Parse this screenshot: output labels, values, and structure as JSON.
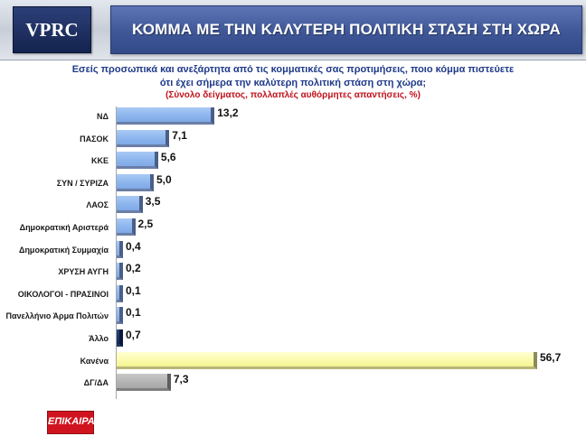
{
  "header": {
    "logo_text": "VPRC",
    "title": "ΚΟΜΜΑ ΜΕ ΤΗΝ ΚΑΛΥΤΕΡΗ ΠΟΛΙΤΙΚΗ ΣΤΑΣΗ ΣΤΗ ΧΩΡΑ"
  },
  "question": {
    "line1": "Εσείς προσωπικά και ανεξάρτητα από τις κομματικές σας προτιμήσεις, ποιο κόμμα πιστεύετε",
    "line2": "ότι έχει σήμερα την καλύτερη πολιτική στάση στη χώρα;",
    "note": "(Σύνολο δείγματος, πολλαπλές αυθόρμητες απαντήσεις, %)"
  },
  "footer": {
    "logo_text": "ΕΠΙΚΑΙΡΑ"
  },
  "colors": {
    "blue_bar": "#8eb6ee",
    "dark_bar": "#142a5c",
    "yellow_bar": "#fbfbae",
    "grey_bar": "#b4b4b4",
    "title_bg": "#3f5797",
    "question_text": "#1f3a8a",
    "note_text": "#c0121c"
  },
  "chart_data": {
    "type": "bar",
    "orientation": "horizontal",
    "title": "ΚΟΜΜΑ ΜΕ ΤΗΝ ΚΑΛΥΤΕΡΗ ΠΟΛΙΤΙΚΗ ΣΤΑΣΗ ΣΤΗ ΧΩΡΑ",
    "xlim": [
      0,
      60
    ],
    "grid": false,
    "legend": "none",
    "categories": [
      "ΝΔ",
      "ΠΑΣΟΚ",
      "ΚΚΕ",
      "ΣΥΝ / ΣΥΡΙΖΑ",
      "ΛΑΟΣ",
      "Δημοκρατική Αριστερά",
      "Δημοκρατική Συμμαχία",
      "ΧΡΥΣΗ ΑΥΓΗ",
      "ΟΙΚΟΛΟΓΟΙ - ΠΡΑΣΙΝΟΙ",
      "Πανελλήνιο Άρμα Πολιτών",
      "Άλλο",
      "Κανένα",
      "ΔΓ/ΔΑ"
    ],
    "values": [
      13.2,
      7.1,
      5.6,
      5.0,
      3.5,
      2.5,
      0.4,
      0.2,
      0.1,
      0.1,
      0.7,
      56.7,
      7.3
    ],
    "value_labels": [
      "13,2",
      "7,1",
      "5,6",
      "5,0",
      "3,5",
      "2,5",
      "0,4",
      "0,2",
      "0,1",
      "0,1",
      "0,7",
      "56,7",
      "7,3"
    ],
    "bar_styles": [
      "blue",
      "blue",
      "blue",
      "blue",
      "blue",
      "blue",
      "blue",
      "blue",
      "blue",
      "blue",
      "dark",
      "yellow",
      "grey"
    ]
  }
}
